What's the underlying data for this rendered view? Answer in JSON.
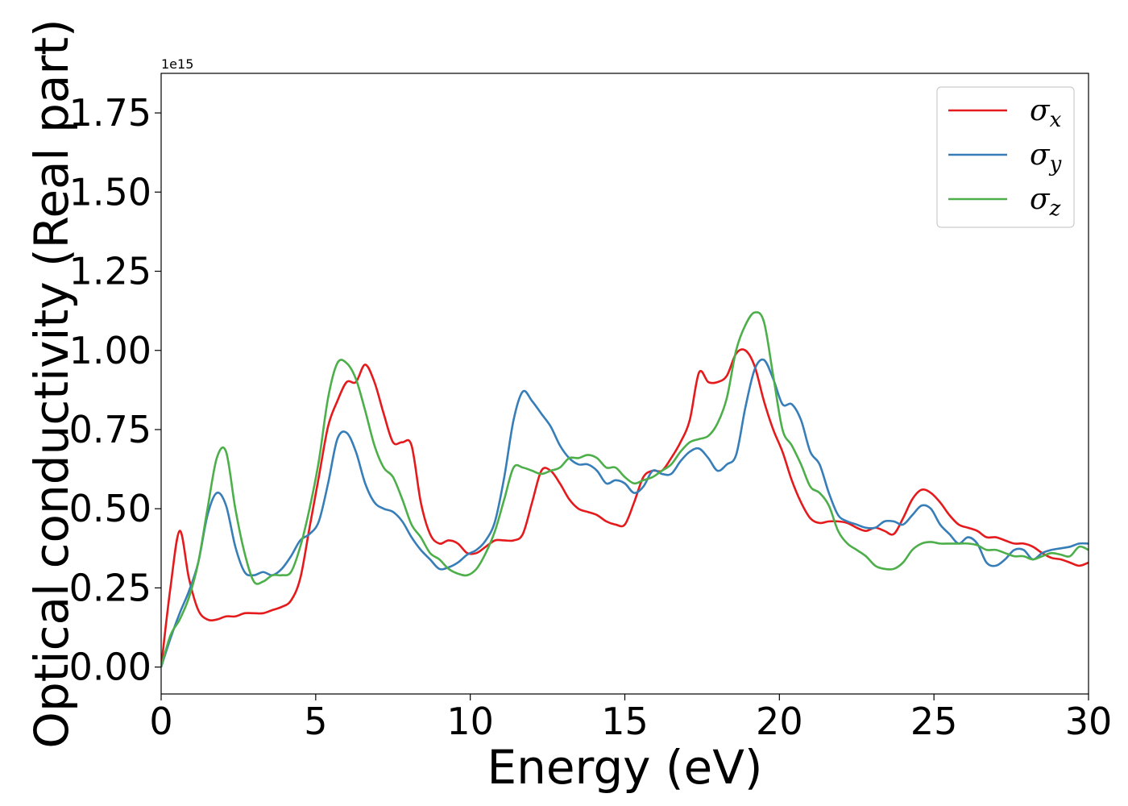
{
  "chart_data": {
    "type": "line",
    "xlabel": "Energy (eV)",
    "ylabel": "Optical conductivity (Real part)",
    "offset_text": "1e15",
    "xlim": [
      0,
      30
    ],
    "ylim": [
      -0.085,
      1.875
    ],
    "y_scale_factor": 1000000000000000.0,
    "x_ticks": [
      0,
      5,
      10,
      15,
      20,
      25,
      30
    ],
    "x_tick_labels": [
      "0",
      "5",
      "10",
      "15",
      "20",
      "25",
      "30"
    ],
    "y_ticks": [
      0.0,
      0.25,
      0.5,
      0.75,
      1.0,
      1.25,
      1.5,
      1.75
    ],
    "y_tick_labels": [
      "0.00",
      "0.25",
      "0.50",
      "0.75",
      "1.00",
      "1.25",
      "1.50",
      "1.75"
    ],
    "grid": false,
    "legend": {
      "position": "top-right"
    },
    "x": [
      0,
      0.3,
      0.6,
      0.9,
      1.2,
      1.5,
      1.8,
      2.1,
      2.4,
      2.7,
      3.0,
      3.3,
      3.6,
      3.9,
      4.2,
      4.5,
      4.8,
      5.1,
      5.4,
      5.7,
      6.0,
      6.3,
      6.6,
      6.9,
      7.2,
      7.5,
      7.8,
      8.1,
      8.4,
      8.7,
      9.0,
      9.3,
      9.6,
      9.9,
      10.2,
      10.5,
      10.8,
      11.1,
      11.4,
      11.7,
      12.0,
      12.3,
      12.6,
      12.9,
      13.2,
      13.5,
      13.8,
      14.1,
      14.4,
      14.7,
      15.0,
      15.3,
      15.6,
      15.9,
      16.2,
      16.5,
      16.8,
      17.1,
      17.4,
      17.7,
      18.0,
      18.3,
      18.6,
      18.9,
      19.2,
      19.5,
      19.8,
      20.1,
      20.4,
      20.7,
      21.0,
      21.3,
      21.6,
      21.9,
      22.2,
      22.5,
      22.8,
      23.1,
      23.4,
      23.7,
      24.0,
      24.3,
      24.6,
      24.9,
      25.2,
      25.5,
      25.8,
      26.1,
      26.4,
      26.7,
      27.0,
      27.3,
      27.6,
      27.9,
      28.2,
      28.5,
      28.8,
      29.1,
      29.4,
      29.7,
      30.0
    ],
    "series": [
      {
        "name": "σ<sub>x</sub>",
        "label_main": "σ",
        "label_sub": "x",
        "color": "#e41a1c",
        "values": [
          0.0,
          0.25,
          0.43,
          0.28,
          0.18,
          0.15,
          0.15,
          0.16,
          0.16,
          0.17,
          0.17,
          0.17,
          0.18,
          0.19,
          0.21,
          0.28,
          0.44,
          0.6,
          0.76,
          0.84,
          0.9,
          0.9,
          0.955,
          0.9,
          0.8,
          0.71,
          0.71,
          0.7,
          0.52,
          0.42,
          0.39,
          0.4,
          0.39,
          0.36,
          0.36,
          0.38,
          0.4,
          0.4,
          0.4,
          0.42,
          0.52,
          0.62,
          0.62,
          0.58,
          0.53,
          0.5,
          0.49,
          0.48,
          0.46,
          0.45,
          0.45,
          0.52,
          0.6,
          0.62,
          0.62,
          0.66,
          0.71,
          0.78,
          0.93,
          0.9,
          0.9,
          0.92,
          0.99,
          1.0,
          0.95,
          0.84,
          0.75,
          0.68,
          0.59,
          0.52,
          0.47,
          0.455,
          0.46,
          0.46,
          0.455,
          0.44,
          0.43,
          0.44,
          0.43,
          0.42,
          0.47,
          0.53,
          0.56,
          0.55,
          0.52,
          0.48,
          0.45,
          0.44,
          0.43,
          0.41,
          0.41,
          0.4,
          0.39,
          0.39,
          0.38,
          0.36,
          0.345,
          0.34,
          0.33,
          0.32,
          0.33
        ]
      },
      {
        "name": "σ<sub>y</sub>",
        "label_main": "σ",
        "label_sub": "y",
        "color": "#377eb8",
        "values": [
          0.0,
          0.09,
          0.17,
          0.24,
          0.33,
          0.48,
          0.55,
          0.51,
          0.38,
          0.3,
          0.29,
          0.3,
          0.29,
          0.31,
          0.35,
          0.4,
          0.42,
          0.46,
          0.58,
          0.72,
          0.74,
          0.68,
          0.58,
          0.52,
          0.5,
          0.49,
          0.46,
          0.41,
          0.37,
          0.34,
          0.31,
          0.315,
          0.33,
          0.355,
          0.37,
          0.4,
          0.46,
          0.6,
          0.78,
          0.87,
          0.84,
          0.8,
          0.76,
          0.7,
          0.66,
          0.64,
          0.64,
          0.62,
          0.58,
          0.59,
          0.58,
          0.55,
          0.57,
          0.62,
          0.61,
          0.61,
          0.65,
          0.68,
          0.69,
          0.66,
          0.62,
          0.64,
          0.67,
          0.82,
          0.94,
          0.97,
          0.91,
          0.83,
          0.83,
          0.78,
          0.68,
          0.64,
          0.55,
          0.48,
          0.46,
          0.45,
          0.44,
          0.44,
          0.46,
          0.46,
          0.45,
          0.48,
          0.51,
          0.5,
          0.45,
          0.42,
          0.39,
          0.41,
          0.39,
          0.33,
          0.32,
          0.34,
          0.37,
          0.37,
          0.34,
          0.36,
          0.37,
          0.375,
          0.38,
          0.39,
          0.39
        ]
      },
      {
        "name": "σ<sub>z</sub>",
        "label_main": "σ",
        "label_sub": "z",
        "color": "#4daf4a",
        "values": [
          0.0,
          0.1,
          0.15,
          0.22,
          0.33,
          0.5,
          0.66,
          0.68,
          0.5,
          0.36,
          0.27,
          0.27,
          0.29,
          0.29,
          0.3,
          0.38,
          0.5,
          0.65,
          0.85,
          0.96,
          0.96,
          0.91,
          0.81,
          0.7,
          0.63,
          0.6,
          0.53,
          0.45,
          0.41,
          0.36,
          0.34,
          0.31,
          0.295,
          0.29,
          0.31,
          0.36,
          0.43,
          0.53,
          0.63,
          0.63,
          0.62,
          0.61,
          0.62,
          0.63,
          0.66,
          0.66,
          0.67,
          0.66,
          0.63,
          0.63,
          0.6,
          0.58,
          0.59,
          0.6,
          0.62,
          0.64,
          0.68,
          0.71,
          0.72,
          0.73,
          0.77,
          0.85,
          1.0,
          1.08,
          1.12,
          1.09,
          0.92,
          0.75,
          0.7,
          0.64,
          0.57,
          0.55,
          0.51,
          0.43,
          0.39,
          0.37,
          0.35,
          0.32,
          0.31,
          0.31,
          0.33,
          0.37,
          0.39,
          0.395,
          0.39,
          0.39,
          0.39,
          0.39,
          0.385,
          0.37,
          0.37,
          0.36,
          0.35,
          0.35,
          0.34,
          0.35,
          0.36,
          0.355,
          0.35,
          0.38,
          0.37
        ]
      }
    ]
  }
}
